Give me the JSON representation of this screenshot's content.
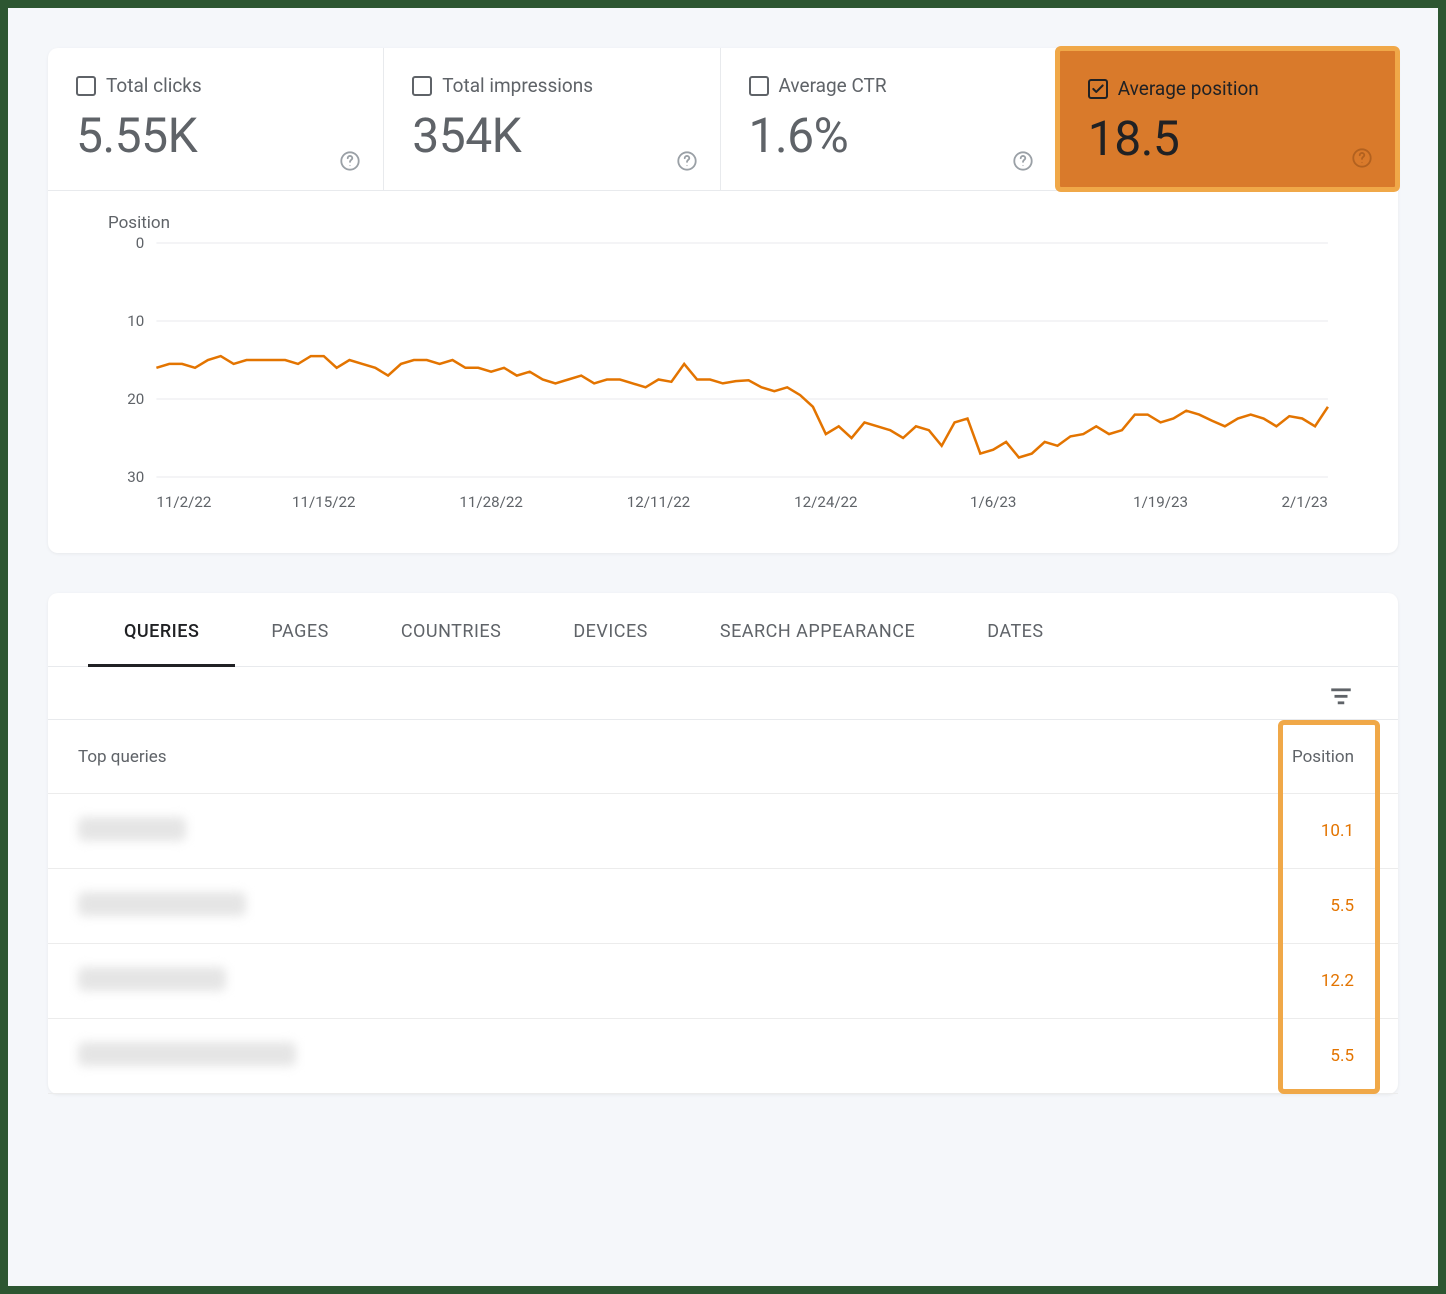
{
  "metrics": [
    {
      "key": "total_clicks",
      "label": "Total clicks",
      "value": "5.55K",
      "checked": false,
      "highlighted": false
    },
    {
      "key": "total_impressions",
      "label": "Total impressions",
      "value": "354K",
      "checked": false,
      "highlighted": false
    },
    {
      "key": "average_ctr",
      "label": "Average CTR",
      "value": "1.6%",
      "checked": false,
      "highlighted": false
    },
    {
      "key": "average_position",
      "label": "Average position",
      "value": "18.5",
      "checked": true,
      "highlighted": true
    }
  ],
  "chart": {
    "title": "Position",
    "type": "line",
    "y_axis": {
      "min": 0,
      "max": 30,
      "ticks": [
        0,
        10,
        20,
        30
      ],
      "inverted": true
    },
    "x_axis": {
      "labels": [
        "11/2/22",
        "11/15/22",
        "11/28/22",
        "12/11/22",
        "12/24/22",
        "1/6/23",
        "1/19/23",
        "2/1/23"
      ]
    },
    "line_color": "#e37400",
    "line_width": 2.5,
    "grid_color": "#e8eaed",
    "background_color": "#ffffff",
    "axis_label_color": "#5f6368",
    "axis_label_fontsize": 15,
    "series": [
      16,
      15.5,
      15.5,
      16,
      15,
      14.5,
      15.5,
      15,
      15,
      15,
      15,
      15.5,
      14.5,
      14.5,
      16,
      15,
      15.5,
      16,
      17,
      15.5,
      15,
      15,
      15.5,
      15,
      16,
      16,
      16.5,
      16,
      17,
      16.5,
      17.5,
      18,
      17.5,
      17,
      18,
      17.5,
      17.5,
      18,
      18.5,
      17.5,
      17.8,
      15.5,
      17.5,
      17.5,
      18,
      17.7,
      17.6,
      18.5,
      19,
      18.5,
      19.5,
      21,
      24.5,
      23.5,
      25,
      23,
      23.5,
      24,
      25,
      23.5,
      24,
      26,
      23,
      22.5,
      27,
      26.5,
      25.5,
      27.5,
      27,
      25.5,
      26,
      24.8,
      24.5,
      23.5,
      24.5,
      24,
      22,
      22,
      23,
      22.5,
      21.5,
      22,
      22.8,
      23.5,
      22.5,
      22,
      22.5,
      23.5,
      22.2,
      22.5,
      23.5,
      21
    ]
  },
  "tabs": [
    {
      "id": "queries",
      "label": "QUERIES",
      "active": true
    },
    {
      "id": "pages",
      "label": "PAGES",
      "active": false
    },
    {
      "id": "countries",
      "label": "COUNTRIES",
      "active": false
    },
    {
      "id": "devices",
      "label": "DEVICES",
      "active": false
    },
    {
      "id": "search_appearance",
      "label": "SEARCH APPEARANCE",
      "active": false
    },
    {
      "id": "dates",
      "label": "DATES",
      "active": false
    }
  ],
  "table": {
    "header_query": "Top queries",
    "header_position": "Position",
    "highlight_position_column": true,
    "highlight_border_color": "#f0a848",
    "position_text_color": "#e37400",
    "rows": [
      {
        "query_blur_width": 108,
        "position": "10.1"
      },
      {
        "query_blur_width": 168,
        "position": "5.5"
      },
      {
        "query_blur_width": 148,
        "position": "12.2"
      },
      {
        "query_blur_width": 218,
        "position": "5.5"
      }
    ]
  }
}
